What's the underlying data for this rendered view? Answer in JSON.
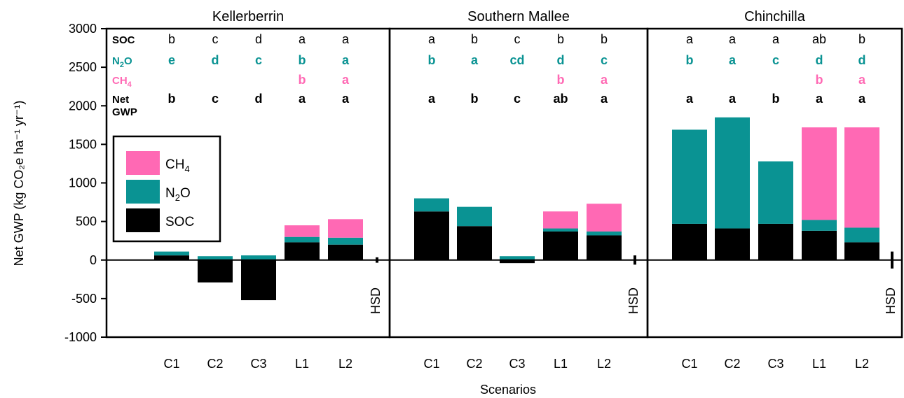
{
  "chart_data": {
    "type": "bar",
    "stacked": true,
    "ylabel": "Net GWP (kg CO₂e ha⁻¹ yr⁻¹)",
    "xlabel": "Scenarios",
    "ylim": [
      -1000,
      3000
    ],
    "yticks": [
      3000,
      2500,
      2000,
      1500,
      1000,
      500,
      0,
      -500,
      -1000
    ],
    "categories": [
      "C1",
      "C2",
      "C3",
      "L1",
      "L2"
    ],
    "colors": {
      "SOC": "#000000",
      "N2O": "#0a9393",
      "CH4": "#ff69b4"
    },
    "legend": {
      "position": "left, inside first panel",
      "entries": [
        {
          "key": "CH4",
          "label": "CH",
          "sub": "4"
        },
        {
          "key": "N2O",
          "label": "N",
          "sub": "2",
          "suffix": "O"
        },
        {
          "key": "SOC",
          "label": "SOC"
        }
      ]
    },
    "row_labels": {
      "SOC": "SOC",
      "N2O": [
        "N",
        "2",
        "O"
      ],
      "CH4": [
        "CH",
        "4"
      ],
      "Net": [
        "Net",
        "GWP"
      ]
    },
    "hsd_label": "HSD",
    "panels": [
      {
        "site": "Kellerberrin",
        "SOC": [
          60,
          -290,
          -520,
          230,
          200
        ],
        "N2O": [
          50,
          50,
          60,
          70,
          90
        ],
        "CH4": [
          0,
          0,
          0,
          150,
          240
        ],
        "hsd": 70,
        "letters": {
          "SOC": [
            "b",
            "c",
            "d",
            "a",
            "a"
          ],
          "N2O": [
            "e",
            "d",
            "c",
            "b",
            "a"
          ],
          "CH4": [
            "",
            "",
            "",
            "b",
            "a"
          ],
          "Net": [
            "b",
            "c",
            "d",
            "a",
            "a"
          ]
        }
      },
      {
        "site": "Southern Mallee",
        "SOC": [
          630,
          440,
          -40,
          370,
          320
        ],
        "N2O": [
          170,
          250,
          50,
          40,
          50
        ],
        "CH4": [
          0,
          0,
          0,
          220,
          360
        ],
        "hsd": 120,
        "letters": {
          "SOC": [
            "a",
            "b",
            "c",
            "b",
            "b"
          ],
          "N2O": [
            "b",
            "a",
            "cd",
            "d",
            "c"
          ],
          "CH4": [
            "",
            "",
            "",
            "b",
            "a"
          ],
          "Net": [
            "a",
            "b",
            "c",
            "ab",
            "a"
          ]
        }
      },
      {
        "site": "Chinchilla",
        "SOC": [
          470,
          410,
          470,
          380,
          230
        ],
        "N2O": [
          1220,
          1440,
          810,
          140,
          190
        ],
        "CH4": [
          0,
          0,
          0,
          1200,
          1300
        ],
        "hsd": 220,
        "letters": {
          "SOC": [
            "a",
            "a",
            "a",
            "ab",
            "b"
          ],
          "N2O": [
            "b",
            "a",
            "c",
            "d",
            "d"
          ],
          "CH4": [
            "",
            "",
            "",
            "b",
            "a"
          ],
          "Net": [
            "a",
            "a",
            "b",
            "a",
            "a"
          ]
        }
      }
    ]
  }
}
